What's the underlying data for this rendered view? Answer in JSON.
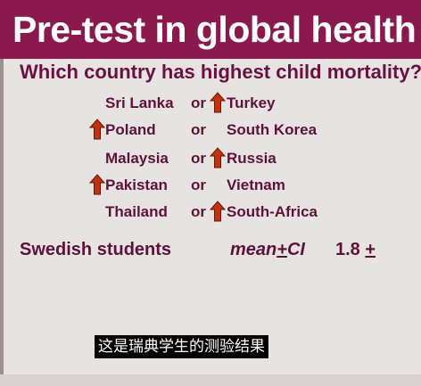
{
  "slide": {
    "title": "Pre-test in global health",
    "question": "Which country has highest child mortality?",
    "pairs": [
      {
        "country_a": "Sri Lanka",
        "or": "or",
        "country_b": "Turkey",
        "answer": "b"
      },
      {
        "country_a": "Poland",
        "or": "or",
        "country_b": "South Korea",
        "answer": "a"
      },
      {
        "country_a": "Malaysia",
        "or": "or",
        "country_b": "Russia",
        "answer": "b"
      },
      {
        "country_a": "Pakistan",
        "or": "or",
        "country_b": "Vietnam",
        "answer": "a"
      },
      {
        "country_a": "Thailand",
        "or": "or",
        "country_b": "South-Africa",
        "answer": "b"
      }
    ],
    "result_label": "Swedish students",
    "stat_label_prefix": "mean",
    "stat_label_pm": "+",
    "stat_label_suffix": "CI",
    "stat_value": "1.8",
    "stat_value_pm": "+"
  },
  "subtitle": "这是瑞典学生的测验结果",
  "colors": {
    "title_bar": "#8a1a4e",
    "text": "#5e1239",
    "arrow_fill": "#c1330f",
    "arrow_stroke": "#6a1405",
    "background": "#e7e3e1"
  },
  "icons": {
    "answer_marker": "up-arrow-icon"
  }
}
